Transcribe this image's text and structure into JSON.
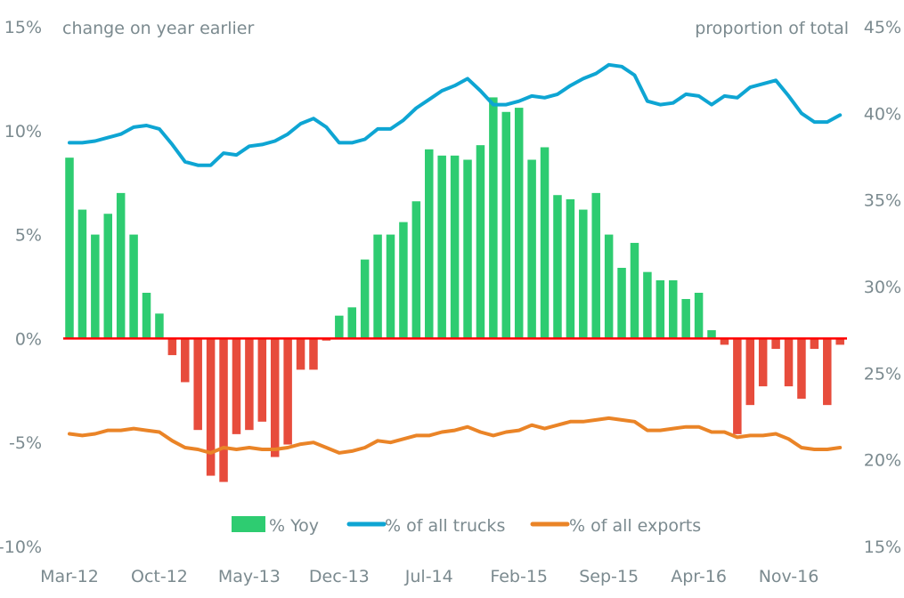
{
  "chart_data": {
    "type": "bar+line",
    "title": "",
    "left_axis_title": "change on year earlier",
    "right_axis_title": "proportion of total",
    "ylim_left": [
      -10,
      15
    ],
    "ylim_right": [
      15,
      45
    ],
    "left_ticks": [
      "15%",
      "10%",
      "5%",
      "0%",
      "-5%",
      "-10%"
    ],
    "left_tick_values": [
      15,
      10,
      5,
      0,
      -5,
      -10
    ],
    "right_ticks": [
      "45%",
      "40%",
      "35%",
      "30%",
      "25%",
      "20%",
      "15%"
    ],
    "right_tick_values": [
      45,
      40,
      35,
      30,
      25,
      20,
      15
    ],
    "x_tick_labels": [
      "Mar-12",
      "Oct-12",
      "May-13",
      "Dec-13",
      "Jul-14",
      "Feb-15",
      "Sep-15",
      "Apr-16",
      "Nov-16"
    ],
    "x_tick_indices": [
      0,
      7,
      14,
      21,
      28,
      35,
      42,
      49,
      56
    ],
    "n_periods": 61,
    "grid": false,
    "legend_position": "bottom",
    "colors": {
      "positive_bar": "#2ecc71",
      "negative_bar": "#e74c3c",
      "trucks_line": "#0ea5d3",
      "exports_line": "#ea8427",
      "zero_line": "#ff0000"
    },
    "series": [
      {
        "name": "% Yoy",
        "type": "bar",
        "axis": "left",
        "values": [
          8.7,
          6.2,
          5.0,
          6.0,
          7.0,
          5.0,
          2.2,
          1.2,
          -0.8,
          -2.1,
          -4.4,
          -6.6,
          -6.9,
          -4.6,
          -4.4,
          -4.0,
          -5.7,
          -5.1,
          -1.5,
          -1.5,
          -0.1,
          1.1,
          1.5,
          3.8,
          5.0,
          5.0,
          5.6,
          6.6,
          9.1,
          8.8,
          8.8,
          8.6,
          9.3,
          11.6,
          10.9,
          11.1,
          8.6,
          9.2,
          6.9,
          6.7,
          6.2,
          7.0,
          5.0,
          3.4,
          4.6,
          3.2,
          2.8,
          2.8,
          1.9,
          2.2,
          0.4,
          -0.3,
          -4.6,
          -3.2,
          -2.3,
          -0.5,
          -2.3,
          -2.9,
          -0.5,
          -3.2,
          -0.3
        ]
      },
      {
        "name": "% of all trucks",
        "type": "line",
        "axis": "right",
        "values": [
          38.3,
          38.3,
          38.4,
          38.6,
          38.8,
          39.2,
          39.3,
          39.1,
          38.2,
          37.2,
          37.0,
          37.0,
          37.7,
          37.6,
          38.1,
          38.2,
          38.4,
          38.8,
          39.4,
          39.7,
          39.2,
          38.3,
          38.3,
          38.5,
          39.1,
          39.1,
          39.6,
          40.3,
          40.8,
          41.3,
          41.6,
          42.0,
          41.3,
          40.5,
          40.5,
          40.7,
          41.0,
          40.9,
          41.1,
          41.6,
          42.0,
          42.3,
          42.8,
          42.7,
          42.2,
          40.7,
          40.5,
          40.6,
          41.1,
          41.0,
          40.5,
          41.0,
          40.9,
          41.5,
          41.7,
          41.9,
          41.0,
          40.0,
          39.5,
          39.5,
          39.9
        ]
      },
      {
        "name": "% of all exports",
        "type": "line",
        "axis": "right",
        "values": [
          21.5,
          21.4,
          21.5,
          21.7,
          21.7,
          21.8,
          21.7,
          21.6,
          21.1,
          20.7,
          20.6,
          20.4,
          20.7,
          20.6,
          20.7,
          20.6,
          20.6,
          20.7,
          20.9,
          21.0,
          20.7,
          20.4,
          20.5,
          20.7,
          21.1,
          21.0,
          21.2,
          21.4,
          21.4,
          21.6,
          21.7,
          21.9,
          21.6,
          21.4,
          21.6,
          21.7,
          22.0,
          21.8,
          22.0,
          22.2,
          22.2,
          22.3,
          22.4,
          22.3,
          22.2,
          21.7,
          21.7,
          21.8,
          21.9,
          21.9,
          21.6,
          21.6,
          21.3,
          21.4,
          21.4,
          21.5,
          21.2,
          20.7,
          20.6,
          20.6,
          20.7
        ]
      }
    ],
    "legend": [
      "% Yoy",
      "% of all trucks",
      "% of all exports"
    ]
  }
}
